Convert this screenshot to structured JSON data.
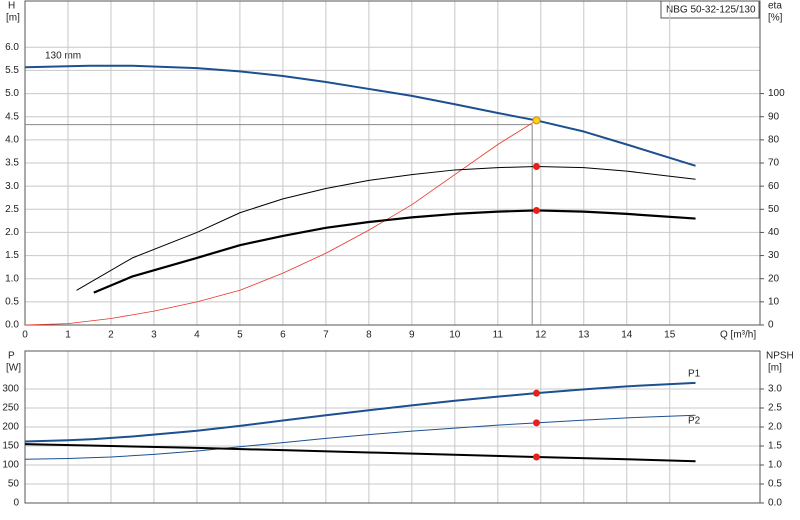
{
  "chart_data": [
    {
      "type": "line",
      "title": "NBG 50-32-125/130",
      "ylabel": "H",
      "yunit": "[m]",
      "y2label": "eta",
      "y2unit": "[%]",
      "xlabel": "Q [m³/h]",
      "xlim": [
        0,
        17.1
      ],
      "xticks": [
        0,
        1,
        2,
        3,
        4,
        5,
        6,
        7,
        8,
        9,
        10,
        11,
        12,
        13,
        14,
        15
      ],
      "ylim": [
        0,
        7
      ],
      "yticks": [
        {
          "value": 0,
          "label": "0.0"
        },
        0.5,
        {
          "value": 1,
          "label": "1.0"
        },
        1.5,
        {
          "value": 2,
          "label": "2.0"
        },
        2.5,
        {
          "value": 3,
          "label": "3.0"
        },
        3.5,
        {
          "value": 4,
          "label": "4.0"
        },
        4.5,
        {
          "value": 5,
          "label": "5.0"
        },
        5.5,
        {
          "value": 6,
          "label": "6.0"
        }
      ],
      "y2lim": [
        0,
        140
      ],
      "y2ticks": [
        0,
        10,
        20,
        30,
        40,
        50,
        60,
        70,
        80,
        90,
        100
      ],
      "grid": true,
      "series": [
        {
          "name": "130 mm",
          "color": "#1d4f91",
          "width": 2,
          "x": [
            0,
            1.5,
            2.5,
            4,
            5,
            6,
            7,
            8,
            9,
            10,
            11,
            11.9,
            13,
            14,
            15.6
          ],
          "values": [
            5.57,
            5.6,
            5.6,
            5.55,
            5.48,
            5.38,
            5.25,
            5.1,
            4.95,
            4.77,
            4.58,
            4.42,
            4.18,
            3.9,
            3.44
          ]
        },
        {
          "color": "#e8352a",
          "width": 0.8,
          "x": [
            0,
            1,
            2,
            3,
            4,
            5,
            6,
            7,
            8,
            9,
            10,
            11,
            11.9
          ],
          "values": [
            0,
            0.03,
            0.14,
            0.3,
            0.5,
            0.75,
            1.12,
            1.55,
            2.05,
            2.6,
            3.25,
            3.9,
            4.42
          ]
        },
        {
          "color": "#000000",
          "width": 1,
          "axis": "y2",
          "x": [
            1.2,
            2.5,
            4,
            5,
            6,
            7,
            8,
            9,
            10,
            11,
            11.9,
            13,
            14,
            15.6
          ],
          "values": [
            15,
            29,
            40,
            48.5,
            54.5,
            59,
            62.5,
            65,
            67,
            68,
            68.5,
            68,
            66.5,
            63
          ]
        },
        {
          "color": "#000000",
          "width": 2.2,
          "axis": "y2",
          "x": [
            1.6,
            2.5,
            4,
            5,
            6,
            7,
            8,
            9,
            10,
            11,
            11.9,
            13,
            14,
            15.6
          ],
          "values": [
            14,
            21,
            29,
            34.5,
            38.5,
            42,
            44.5,
            46.5,
            48,
            49,
            49.5,
            49,
            48,
            46
          ]
        }
      ],
      "crosshair": {
        "x": 11.8,
        "y": 4.33,
        "color": "#888888"
      },
      "markers": [
        {
          "x": 11.9,
          "y": 4.42,
          "color": "#ffd21a"
        },
        {
          "x": 11.9,
          "y": 68.5,
          "axis": "y2",
          "color": "#e8201a"
        },
        {
          "x": 11.9,
          "y": 49.5,
          "axis": "y2",
          "color": "#e8201a"
        }
      ]
    },
    {
      "type": "line",
      "ylabel": "P",
      "yunit": "[W]",
      "y2label": "NPSH",
      "y2unit": "[m]",
      "xlim": [
        0,
        17.1
      ],
      "ylim": [
        0,
        400
      ],
      "yticks": [
        0,
        50,
        100,
        150,
        200,
        250,
        300
      ],
      "y2lim": [
        0,
        4
      ],
      "y2ticks": [
        {
          "value": 0,
          "label": "0.0"
        },
        0.5,
        {
          "value": 1,
          "label": "1.0"
        },
        1.5,
        {
          "value": 2,
          "label": "2.0"
        },
        2.5,
        {
          "value": 3,
          "label": "3.0"
        }
      ],
      "grid": true,
      "series": [
        {
          "name": "P1",
          "color": "#1d4f91",
          "width": 2,
          "x": [
            0,
            1,
            1.6,
            2.5,
            4,
            5,
            6,
            7,
            8,
            9,
            10,
            11,
            11.9,
            13,
            14,
            15.6
          ],
          "values": [
            162,
            165,
            168,
            175,
            190,
            203,
            217,
            231,
            244,
            257,
            269,
            280,
            289,
            299,
            307,
            316
          ]
        },
        {
          "name": "P2",
          "color": "#1d4f91",
          "width": 1,
          "x": [
            0,
            1,
            2,
            3,
            4,
            5,
            6,
            7,
            8,
            9,
            10,
            11,
            11.9,
            13,
            14,
            15.6
          ],
          "values": [
            115,
            117,
            121,
            128,
            137,
            148,
            159,
            170,
            180,
            189,
            197,
            205,
            211,
            218,
            224,
            231
          ]
        },
        {
          "color": "#000000",
          "width": 2,
          "axis": "y2",
          "x": [
            0,
            2,
            4,
            6,
            8,
            10,
            11.9,
            14,
            15.6
          ],
          "values": [
            1.55,
            1.5,
            1.45,
            1.39,
            1.33,
            1.27,
            1.21,
            1.15,
            1.1
          ]
        }
      ],
      "markers": [
        {
          "x": 11.9,
          "y": 289,
          "color": "#e8201a"
        },
        {
          "x": 11.9,
          "y": 211,
          "color": "#e8201a"
        },
        {
          "x": 11.9,
          "y": 1.21,
          "axis": "y2",
          "color": "#e8201a"
        }
      ]
    }
  ]
}
